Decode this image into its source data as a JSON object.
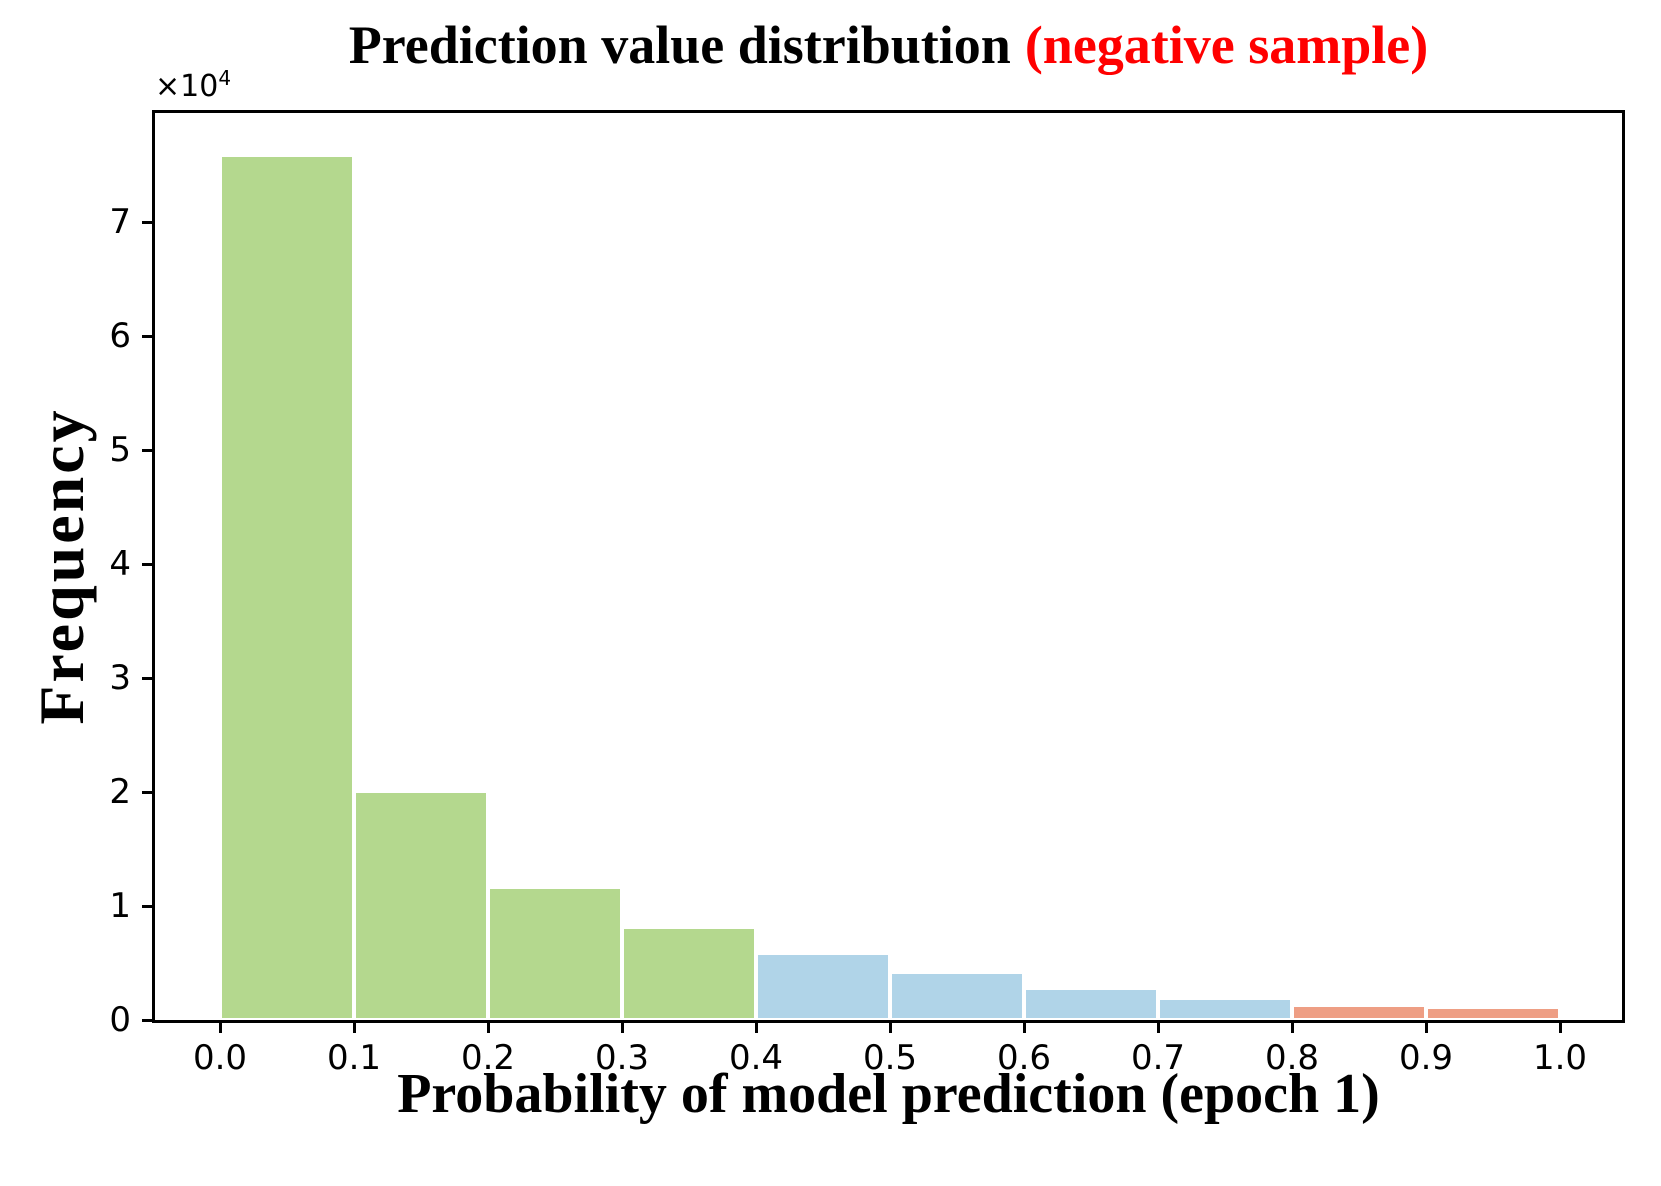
{
  "title": {
    "main": "Prediction value distribution",
    "highlight": "(negative sample)",
    "highlight_color": "#ff0000"
  },
  "axes": {
    "x_label": "Probability of model prediction (epoch 1)",
    "y_label": "Frequency",
    "y_offset_base": "×10",
    "y_offset_exp": "4",
    "x_ticks": [
      "0.0",
      "0.1",
      "0.2",
      "0.3",
      "0.4",
      "0.5",
      "0.6",
      "0.7",
      "0.8",
      "0.9",
      "1.0"
    ],
    "y_ticks": [
      "0",
      "1",
      "2",
      "3",
      "4",
      "5",
      "6",
      "7"
    ]
  },
  "chart_data": {
    "type": "bar",
    "kind": "histogram",
    "title": "Prediction value distribution (negative sample)",
    "xlabel": "Probability of model prediction (epoch 1)",
    "ylabel": "Frequency",
    "y_scale_factor": 10000,
    "bin_edges": [
      0.0,
      0.1,
      0.2,
      0.3,
      0.4,
      0.5,
      0.6,
      0.7,
      0.8,
      0.9,
      1.0
    ],
    "frequencies_x10k": [
      7.59,
      2.01,
      1.17,
      0.82,
      0.59,
      0.42,
      0.28,
      0.19,
      0.13,
      0.11
    ],
    "bar_colors": [
      "#b4d88e",
      "#b4d88e",
      "#b4d88e",
      "#b4d88e",
      "#b0d4e8",
      "#b0d4e8",
      "#b0d4e8",
      "#b0d4e8",
      "#ee9e84",
      "#ee9e84"
    ],
    "colors": {
      "low_bins_green": "#b4d88e",
      "mid_bins_blue": "#b0d4e8",
      "high_bins_salmon": "#ee9e84",
      "bar_edge": "#ffffff",
      "title_highlight": "#ff0000",
      "axis": "#000000"
    },
    "xlim": [
      -0.05,
      1.05
    ],
    "ylim": [
      0,
      8.0
    ],
    "grid": false,
    "legend": null
  }
}
